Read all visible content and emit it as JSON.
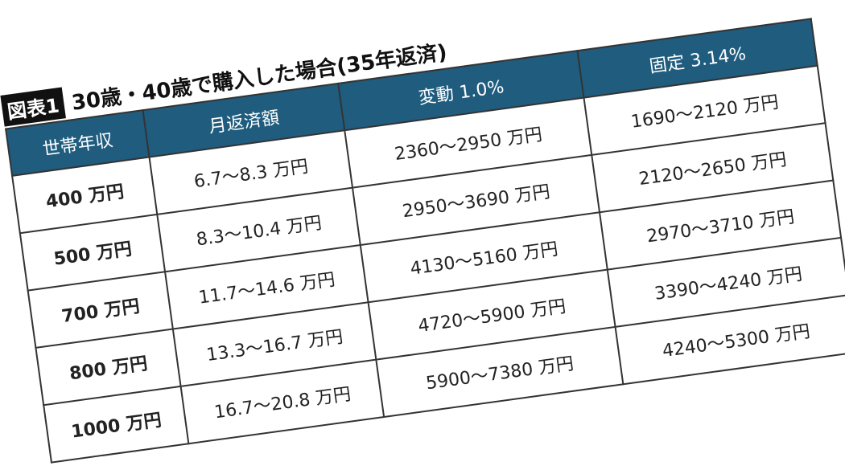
{
  "figure_label": "図表1",
  "title": "30歳・40歳で購入した場合(35年返済)",
  "table": {
    "header": [
      "世帯年収",
      "月返済額",
      "変動 1.0%",
      "固定 3.14%"
    ],
    "rows": [
      [
        "400 万円",
        "6.7〜8.3 万円",
        "2360〜2950 万円",
        "1690〜2120 万円"
      ],
      [
        "500 万円",
        "8.3〜10.4 万円",
        "2950〜3690 万円",
        "2120〜2650 万円"
      ],
      [
        "700 万円",
        "11.7〜14.6 万円",
        "4130〜5160 万円",
        "2970〜3710 万円"
      ],
      [
        "800 万円",
        "13.3〜16.7 万円",
        "4720〜5900 万円",
        "3390〜4240 万円"
      ],
      [
        "1000 万円",
        "16.7〜20.8 万円",
        "5900〜7380 万円",
        "4240〜5300 万円"
      ]
    ]
  }
}
